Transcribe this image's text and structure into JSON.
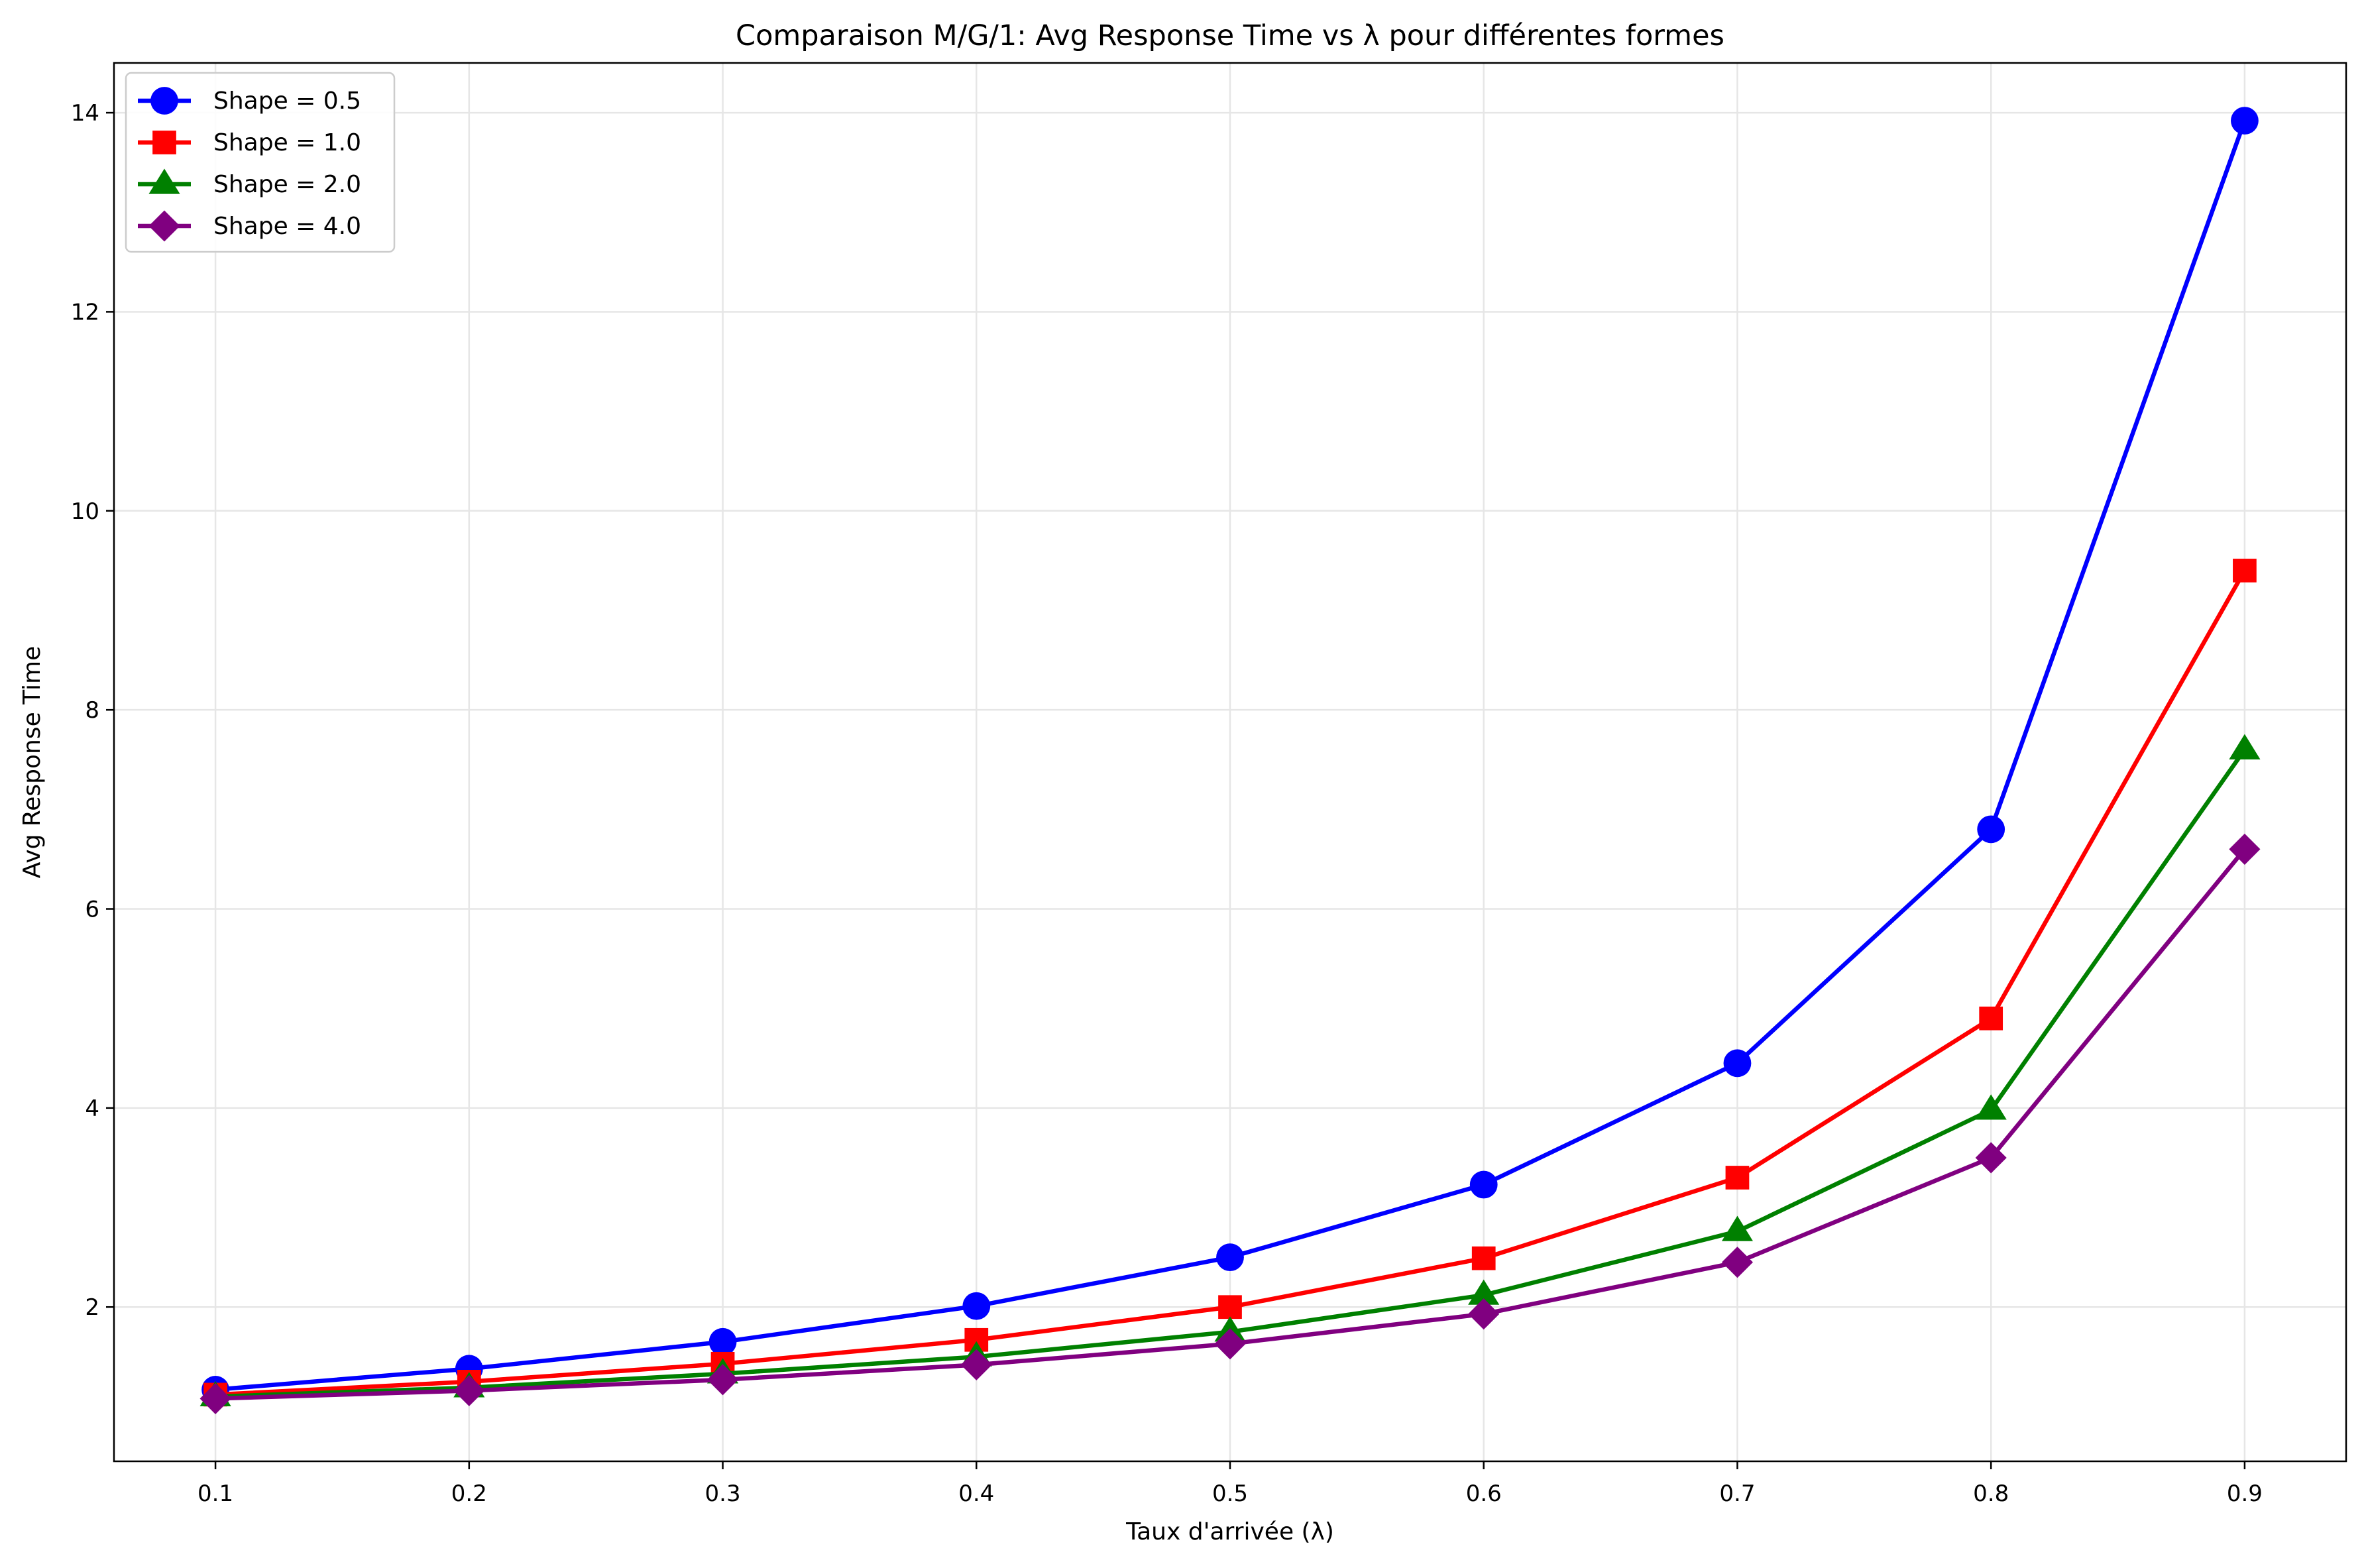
{
  "chart_data": {
    "type": "line",
    "title": "Comparaison M/G/1: Avg Response Time vs λ pour différentes formes",
    "xlabel": "Taux d'arrivée (λ)",
    "ylabel": "Avg Response Time",
    "x": [
      0.1,
      0.2,
      0.3,
      0.4,
      0.5,
      0.6,
      0.7,
      0.8,
      0.9
    ],
    "x_ticks": [
      "0.1",
      "0.2",
      "0.3",
      "0.4",
      "0.5",
      "0.6",
      "0.7",
      "0.8",
      "0.9"
    ],
    "y_ticks": [
      "2",
      "4",
      "6",
      "8",
      "10",
      "12",
      "14"
    ],
    "xlim": [
      0.06,
      0.94
    ],
    "ylim": [
      0.45,
      14.5
    ],
    "grid": true,
    "legend_position": "top-left",
    "series": [
      {
        "name": "Shape = 0.5",
        "color": "#0000ff",
        "marker": "circle",
        "values": [
          1.17,
          1.38,
          1.65,
          2.01,
          2.5,
          3.23,
          4.45,
          6.8,
          13.92
        ]
      },
      {
        "name": "Shape = 1.0",
        "color": "#ff0000",
        "marker": "square",
        "values": [
          1.12,
          1.25,
          1.43,
          1.67,
          2.0,
          2.49,
          3.3,
          4.9,
          9.4
        ]
      },
      {
        "name": "Shape = 2.0",
        "color": "#008000",
        "marker": "triangle",
        "values": [
          1.1,
          1.19,
          1.33,
          1.5,
          1.75,
          2.12,
          2.76,
          3.98,
          7.6
        ]
      },
      {
        "name": "Shape = 4.0",
        "color": "#800080",
        "marker": "diamond",
        "values": [
          1.08,
          1.16,
          1.27,
          1.42,
          1.63,
          1.93,
          2.45,
          3.5,
          6.6
        ]
      }
    ]
  }
}
